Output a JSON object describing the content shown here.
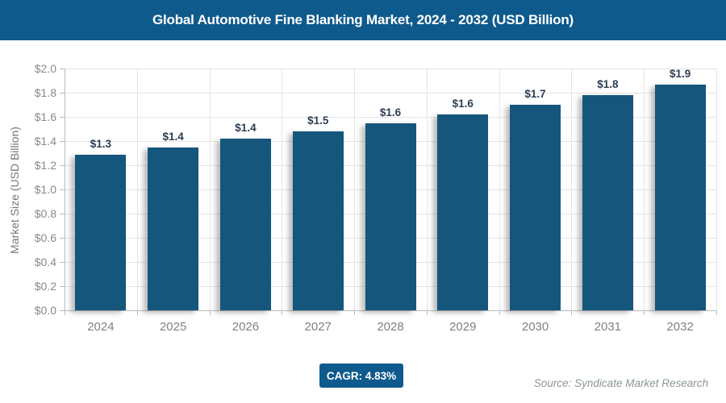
{
  "header": {
    "title": "Global Automotive Fine Blanking Market, 2024 - 2032 (USD Billion)",
    "bg_color": "#0f5a8c",
    "text_color": "#ffffff"
  },
  "chart_data": {
    "type": "bar",
    "title": "Global Automotive Fine Blanking Market, 2024 - 2032 (USD Billion)",
    "categories": [
      "2024",
      "2025",
      "2026",
      "2027",
      "2028",
      "2029",
      "2030",
      "2031",
      "2032"
    ],
    "values": [
      1.29,
      1.35,
      1.42,
      1.48,
      1.55,
      1.62,
      1.7,
      1.78,
      1.87
    ],
    "data_labels": [
      "$1.3",
      "$1.4",
      "$1.4",
      "$1.5",
      "$1.6",
      "$1.6",
      "$1.7",
      "$1.8",
      "$1.9"
    ],
    "xlabel": "",
    "ylabel": "Market Size (USD Billion)",
    "ylim": [
      0,
      2.0
    ],
    "ytick_step": 0.2,
    "ytick_prefix": "$",
    "grid": true,
    "legend": false,
    "bar_color": "#15567d",
    "data_label_color": "#2c3e54",
    "grid_color": "#e4e4e4",
    "axis_color": "#b7babd",
    "tick_label_color": "#85898c"
  },
  "footer": {
    "cagr_label": "CAGR: 4.83%",
    "source": "Source: Syndicate Market Research",
    "badge_color": "#0f5a8c"
  }
}
